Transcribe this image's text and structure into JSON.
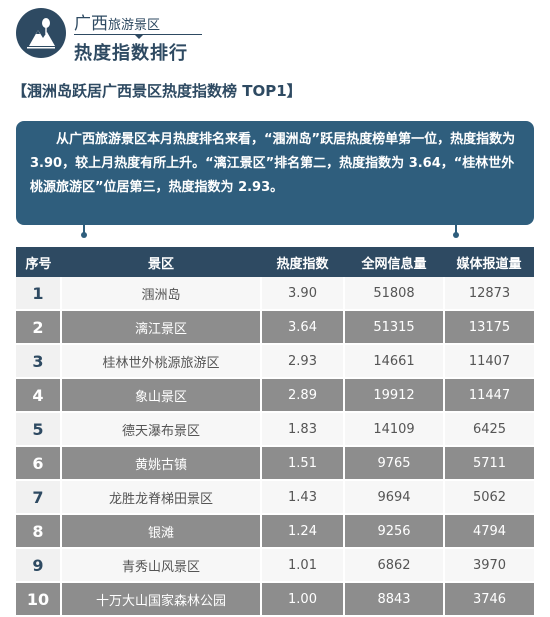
{
  "header": {
    "title_small_prefix": "广西",
    "title_small_suffix": "旅游景区",
    "title_big": "热度指数排行"
  },
  "subtitle": "【涠洲岛跃居广西景区热度指数榜 TOP1】",
  "summary": "从广西旅游景区本月热度排名来看，“涠洲岛”跃居热度榜单第一位，热度指数为 3.90，较上月热度有所上升。“漓江景区”排名第二，热度指数为 3.64，“桂林世外桃源旅游区”位居第三，热度指数为 2.93。",
  "table": {
    "headers": [
      "序号",
      "景区",
      "热度指数",
      "全网信息量",
      "媒体报道量"
    ],
    "rows": [
      {
        "no": "1",
        "name": "涠洲岛",
        "heat": "3.90",
        "info": "51808",
        "media": "12873"
      },
      {
        "no": "2",
        "name": "漓江景区",
        "heat": "3.64",
        "info": "51315",
        "media": "13175"
      },
      {
        "no": "3",
        "name": "桂林世外桃源旅游区",
        "heat": "2.93",
        "info": "14661",
        "media": "11407"
      },
      {
        "no": "4",
        "name": "象山景区",
        "heat": "2.89",
        "info": "19912",
        "media": "11447"
      },
      {
        "no": "5",
        "name": "德天瀑布景区",
        "heat": "1.83",
        "info": "14109",
        "media": "6425"
      },
      {
        "no": "6",
        "name": "黄姚古镇",
        "heat": "1.51",
        "info": "9765",
        "media": "5711"
      },
      {
        "no": "7",
        "name": "龙胜龙脊梯田景区",
        "heat": "1.43",
        "info": "9694",
        "media": "5062"
      },
      {
        "no": "8",
        "name": "银滩",
        "heat": "1.24",
        "info": "9256",
        "media": "4794"
      },
      {
        "no": "9",
        "name": "青秀山风景区",
        "heat": "1.01",
        "info": "6862",
        "media": "3970"
      },
      {
        "no": "10",
        "name": "十万大山国家森林公园",
        "heat": "1.00",
        "info": "8843",
        "media": "3746"
      }
    ]
  },
  "colors": {
    "primary": "#2e4a62",
    "callout": "#2f5e7d",
    "row_dark": "#8d8d8d",
    "row_light": "#f1f1f1"
  },
  "icons": {
    "logo": "mountain-tree-logo-icon"
  }
}
